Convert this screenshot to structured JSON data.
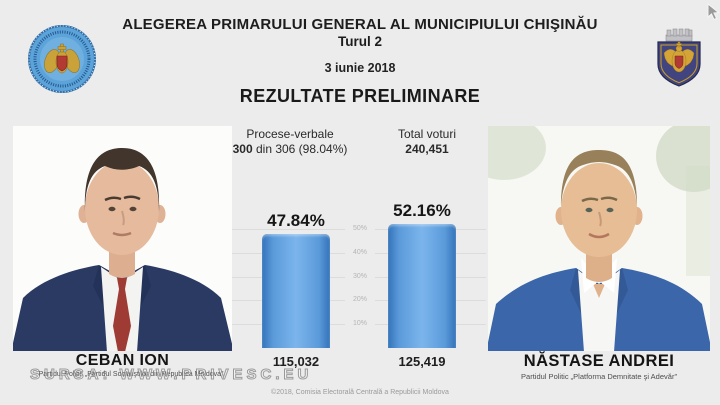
{
  "page": {
    "background": "#ececec",
    "accent_blue": "#4286c9"
  },
  "header": {
    "title": "ALEGEREA PRIMARULUI GENERAL AL MUNICIPIULUI CHIŞINĂU",
    "round": "Turul 2",
    "date": "3 iunie 2018",
    "results_title": "REZULTATE PRELIMINARE"
  },
  "stats": {
    "protocols_label": "Procese-verbale",
    "protocols_value_bold": "300",
    "protocols_value_rest": " din 306 (98.04%)",
    "total_votes_label": "Total voturi",
    "total_votes_value": "240,451"
  },
  "chart_data": {
    "type": "bar",
    "categories": [
      "CEBAN ION",
      "NĂSTASE ANDREI"
    ],
    "values": [
      47.84,
      52.16
    ],
    "value_labels": [
      "47.84%",
      "52.16%"
    ],
    "vote_counts": [
      "115,032",
      "125,419"
    ],
    "ylabel_ticks": [
      "50%",
      "40%",
      "30%",
      "20%",
      "10%"
    ],
    "ylim": [
      0,
      55
    ],
    "grid": true,
    "legend": "none",
    "bar_color": "#4286c9"
  },
  "candidates": [
    {
      "name": "CEBAN ION",
      "party": "Partidul Politic „Partidul Socialiştilor din Republica Moldova”"
    },
    {
      "name": "NĂSTASE ANDREI",
      "party": "Partidul Politic „Platforma Demnitate şi Adevăr”"
    }
  ],
  "logos": {
    "left": "Comisia Electorală Centrală seal",
    "right": "Chişinău coat of arms"
  },
  "watermark": "SURSA: WWW.PRIVESC.EU",
  "footer": "©2018, Comisia Electorală Centrală a Republicii Moldova"
}
